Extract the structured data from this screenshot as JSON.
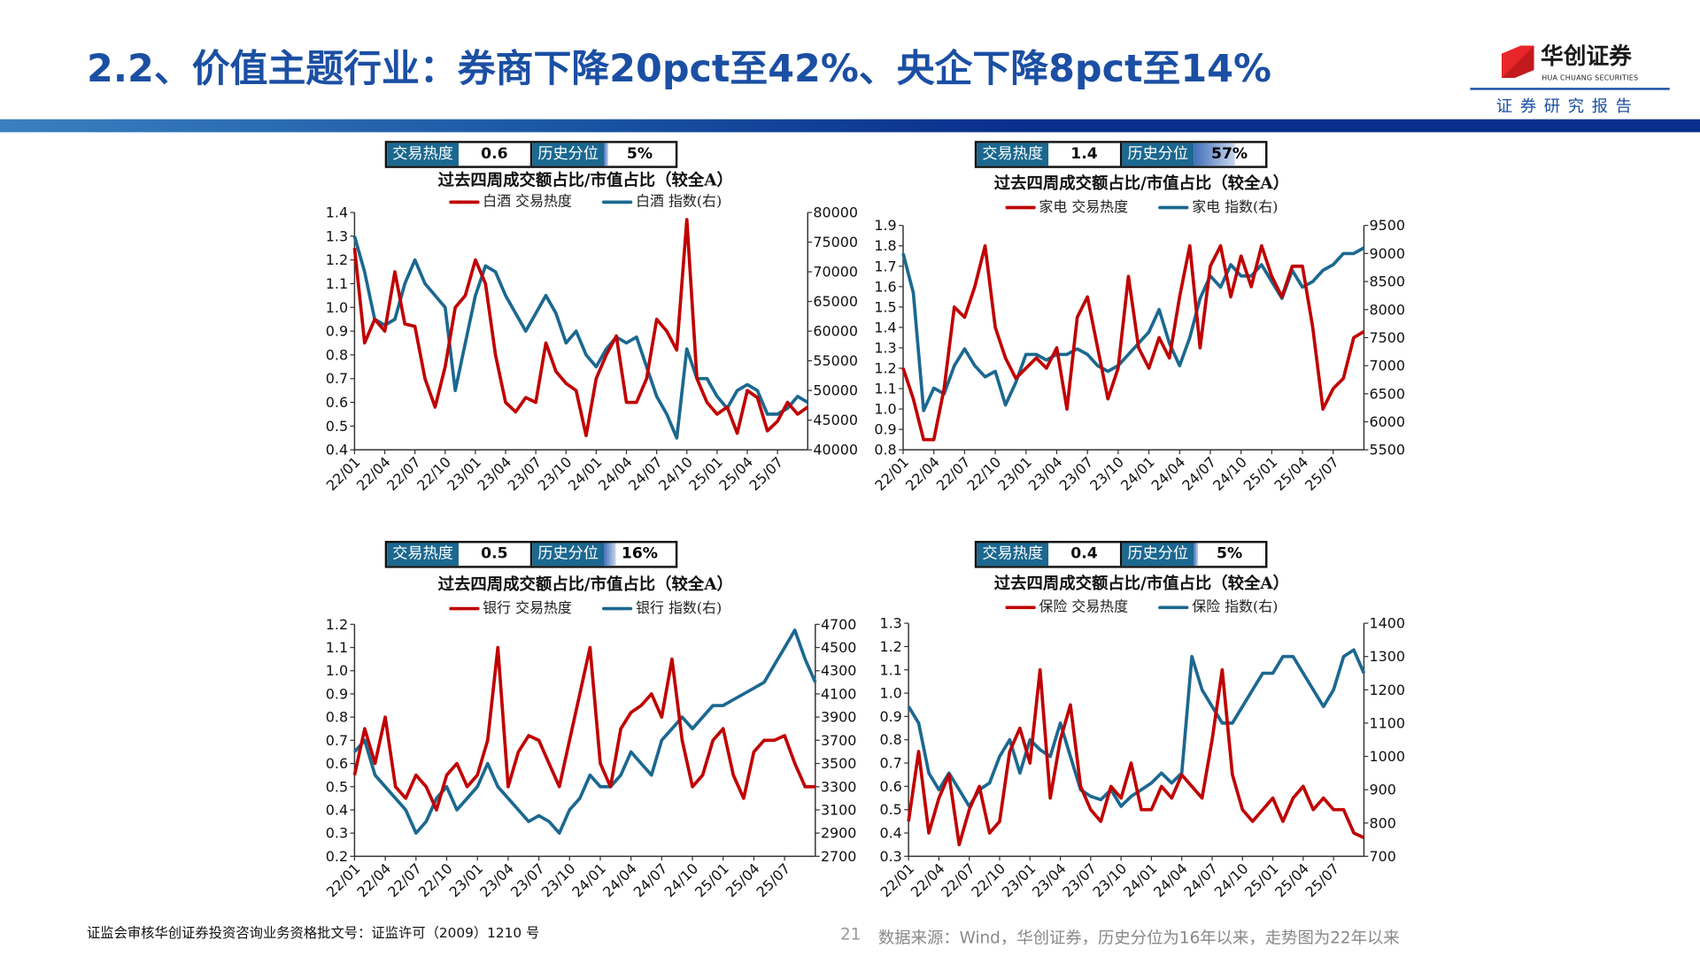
{
  "header": {
    "title": "2.2、价值主题行业：券商下降20pct至42%、央企下降8pct至14%",
    "logo_cn": "华创证券",
    "logo_en": "HUA CHUANG SECURITIES",
    "subtitle": "证券研究报告"
  },
  "colors": {
    "heat": "#c00000",
    "index": "#1b6890",
    "title": "#1b4fa3"
  },
  "labels": {
    "heat": "交易热度",
    "percentile": "历史分位"
  },
  "footer": {
    "license": "证监会审核华创证券投资咨询业务资格批文号：证监许可（2009）1210 号",
    "page": "21",
    "source": "数据来源：Wind，华创证券，历史分位为16年以来，走势图为22年以来"
  },
  "chart_data": [
    {
      "type": "line",
      "title": "过去四周成交额占比/市值占比（较全A）",
      "heat_value": "0.6",
      "percentile": "5%",
      "percentile_fraction": 0.05,
      "x_ticks": [
        "22/01",
        "22/04",
        "22/07",
        "22/10",
        "23/01",
        "23/04",
        "23/07",
        "23/10",
        "24/01",
        "24/04",
        "24/07",
        "24/10",
        "25/01",
        "25/04",
        "25/07"
      ],
      "ylim": [
        0.4,
        1.4
      ],
      "y_ticks": [
        "0.4",
        "0.5",
        "0.6",
        "0.7",
        "0.8",
        "0.9",
        "1.0",
        "1.1",
        "1.2",
        "1.3",
        "1.4"
      ],
      "y2lim": [
        40000,
        80000
      ],
      "y2_ticks": [
        "40000",
        "45000",
        "50000",
        "55000",
        "60000",
        "65000",
        "70000",
        "75000",
        "80000"
      ],
      "series": [
        {
          "name": "白酒 交易热度",
          "axis": "left",
          "values": [
            1.25,
            0.85,
            0.95,
            0.9,
            1.15,
            0.93,
            0.92,
            0.7,
            0.58,
            0.75,
            1.0,
            1.05,
            1.2,
            1.1,
            0.8,
            0.6,
            0.56,
            0.62,
            0.6,
            0.85,
            0.73,
            0.68,
            0.65,
            0.46,
            0.7,
            0.8,
            0.88,
            0.6,
            0.6,
            0.7,
            0.95,
            0.9,
            0.82,
            1.37,
            0.7,
            0.6,
            0.55,
            0.58,
            0.47,
            0.65,
            0.62,
            0.48,
            0.52,
            0.6,
            0.55,
            0.58
          ]
        },
        {
          "name": "白酒 指数(右)",
          "axis": "right",
          "values": [
            76000,
            70000,
            62000,
            61000,
            62000,
            68000,
            72000,
            68000,
            66000,
            64000,
            50000,
            58000,
            66000,
            71000,
            70000,
            66000,
            63000,
            60000,
            63000,
            66000,
            63000,
            58000,
            60000,
            56000,
            54000,
            57000,
            59000,
            58000,
            59000,
            54000,
            49000,
            46000,
            42000,
            57000,
            52000,
            52000,
            49000,
            47000,
            50000,
            51000,
            50000,
            46000,
            46000,
            47000,
            49000,
            48000
          ]
        }
      ]
    },
    {
      "type": "line",
      "title": "过去四周成交额占比/市值占比（较全A）",
      "heat_value": "1.4",
      "percentile": "57%",
      "percentile_fraction": 0.57,
      "x_ticks": [
        "22/01",
        "22/04",
        "22/07",
        "22/10",
        "23/01",
        "23/04",
        "23/07",
        "23/10",
        "24/01",
        "24/04",
        "24/07",
        "24/10",
        "25/01",
        "25/04",
        "25/07"
      ],
      "ylim": [
        0.8,
        1.9
      ],
      "y_ticks": [
        "0.8",
        "0.9",
        "1.0",
        "1.1",
        "1.2",
        "1.3",
        "1.4",
        "1.5",
        "1.6",
        "1.7",
        "1.8",
        "1.9"
      ],
      "y2lim": [
        5500,
        9500
      ],
      "y2_ticks": [
        "5500",
        "6000",
        "6500",
        "7000",
        "7500",
        "8000",
        "8500",
        "9000",
        "9500"
      ],
      "series": [
        {
          "name": "家电 交易热度",
          "axis": "left",
          "values": [
            1.2,
            1.05,
            0.85,
            0.85,
            1.1,
            1.5,
            1.45,
            1.6,
            1.8,
            1.4,
            1.25,
            1.15,
            1.2,
            1.25,
            1.2,
            1.3,
            1.0,
            1.45,
            1.55,
            1.3,
            1.05,
            1.2,
            1.65,
            1.3,
            1.2,
            1.35,
            1.25,
            1.55,
            1.8,
            1.3,
            1.7,
            1.8,
            1.55,
            1.75,
            1.6,
            1.8,
            1.65,
            1.55,
            1.7,
            1.7,
            1.4,
            1.0,
            1.1,
            1.15,
            1.35,
            1.38
          ]
        },
        {
          "name": "家电 指数(右)",
          "axis": "right",
          "values": [
            9000,
            8300,
            6200,
            6600,
            6500,
            7000,
            7300,
            7000,
            6800,
            6900,
            6300,
            6700,
            7200,
            7200,
            7100,
            7200,
            7200,
            7300,
            7200,
            7000,
            6900,
            7000,
            7200,
            7400,
            7600,
            8000,
            7400,
            7000,
            7500,
            8200,
            8600,
            8400,
            8800,
            8600,
            8600,
            8800,
            8500,
            8200,
            8700,
            8400,
            8500,
            8700,
            8800,
            9000,
            9000,
            9100
          ]
        }
      ]
    },
    {
      "type": "line",
      "title": "过去四周成交额占比/市值占比（较全A）",
      "heat_value": "0.5",
      "percentile": "16%",
      "percentile_fraction": 0.16,
      "x_ticks": [
        "22/01",
        "22/04",
        "22/07",
        "22/10",
        "23/01",
        "23/04",
        "23/07",
        "23/10",
        "24/01",
        "24/04",
        "24/07",
        "24/10",
        "25/01",
        "25/04",
        "25/07"
      ],
      "ylim": [
        0.2,
        1.2
      ],
      "y_ticks": [
        "0.2",
        "0.3",
        "0.4",
        "0.5",
        "0.6",
        "0.7",
        "0.8",
        "0.9",
        "1.0",
        "1.1",
        "1.2"
      ],
      "y2lim": [
        2700,
        4700
      ],
      "y2_ticks": [
        "2700",
        "2900",
        "3100",
        "3300",
        "3500",
        "3700",
        "3900",
        "4100",
        "4300",
        "4500",
        "4700"
      ],
      "series": [
        {
          "name": "银行 交易热度",
          "axis": "left",
          "values": [
            0.55,
            0.75,
            0.6,
            0.8,
            0.5,
            0.45,
            0.55,
            0.5,
            0.4,
            0.55,
            0.6,
            0.5,
            0.55,
            0.7,
            1.1,
            0.5,
            0.65,
            0.72,
            0.7,
            0.6,
            0.5,
            0.7,
            0.9,
            1.1,
            0.6,
            0.5,
            0.75,
            0.82,
            0.85,
            0.9,
            0.8,
            1.05,
            0.7,
            0.5,
            0.55,
            0.7,
            0.75,
            0.55,
            0.45,
            0.65,
            0.7,
            0.7,
            0.72,
            0.6,
            0.5,
            0.5
          ]
        },
        {
          "name": "银行 指数(右)",
          "axis": "right",
          "values": [
            3600,
            3700,
            3400,
            3300,
            3200,
            3100,
            2900,
            3000,
            3200,
            3300,
            3100,
            3200,
            3300,
            3500,
            3300,
            3200,
            3100,
            3000,
            3050,
            3000,
            2900,
            3100,
            3200,
            3400,
            3300,
            3300,
            3400,
            3600,
            3500,
            3400,
            3700,
            3800,
            3900,
            3800,
            3900,
            4000,
            4000,
            4050,
            4100,
            4150,
            4200,
            4350,
            4500,
            4650,
            4400,
            4200
          ]
        }
      ]
    },
    {
      "type": "line",
      "title": "过去四周成交额占比/市值占比（较全A）",
      "heat_value": "0.4",
      "percentile": "5%",
      "percentile_fraction": 0.05,
      "x_ticks": [
        "22/01",
        "22/04",
        "22/07",
        "22/10",
        "23/01",
        "23/04",
        "23/07",
        "23/10",
        "24/01",
        "24/04",
        "24/07",
        "24/10",
        "25/01",
        "25/04",
        "25/07"
      ],
      "ylim": [
        0.3,
        1.3
      ],
      "y_ticks": [
        "0.3",
        "0.4",
        "0.5",
        "0.6",
        "0.7",
        "0.8",
        "0.9",
        "1.0",
        "1.1",
        "1.2",
        "1.3"
      ],
      "y2lim": [
        700,
        1400
      ],
      "y2_ticks": [
        "700",
        "800",
        "900",
        "1000",
        "1100",
        "1200",
        "1300",
        "1400"
      ],
      "series": [
        {
          "name": "保险 交易热度",
          "axis": "left",
          "values": [
            0.45,
            0.75,
            0.4,
            0.55,
            0.65,
            0.35,
            0.5,
            0.6,
            0.4,
            0.45,
            0.75,
            0.85,
            0.7,
            1.1,
            0.55,
            0.8,
            0.95,
            0.6,
            0.5,
            0.45,
            0.6,
            0.55,
            0.7,
            0.5,
            0.5,
            0.6,
            0.55,
            0.65,
            0.6,
            0.55,
            0.8,
            1.1,
            0.65,
            0.5,
            0.45,
            0.5,
            0.55,
            0.45,
            0.55,
            0.6,
            0.5,
            0.55,
            0.5,
            0.5,
            0.4,
            0.38
          ]
        },
        {
          "name": "保险 指数(右)",
          "axis": "right",
          "values": [
            1150,
            1100,
            950,
            900,
            950,
            900,
            850,
            900,
            920,
            1000,
            1050,
            950,
            1050,
            1020,
            1000,
            1100,
            1000,
            900,
            880,
            870,
            900,
            850,
            880,
            900,
            920,
            950,
            920,
            950,
            1300,
            1200,
            1150,
            1100,
            1100,
            1150,
            1200,
            1250,
            1250,
            1300,
            1300,
            1250,
            1200,
            1150,
            1200,
            1300,
            1320,
            1250
          ]
        }
      ]
    }
  ]
}
